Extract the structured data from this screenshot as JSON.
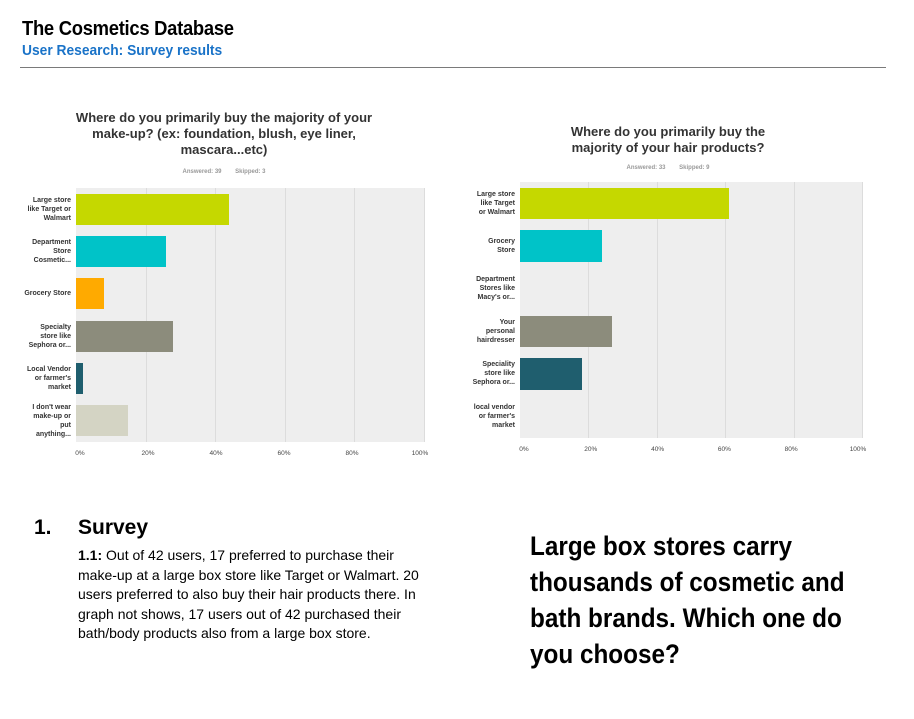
{
  "header": {
    "title": "The Cosmetics Database",
    "subtitle": "User Research: Survey results"
  },
  "chart_data": [
    {
      "type": "bar",
      "orientation": "horizontal",
      "title": "Where do you primarily buy the majority of your make-up? (ex: foundation, blush, eye liner, mascara...etc)",
      "answered": "Answered: 39",
      "skipped": "Skipped: 3",
      "categories": [
        "Large store like Target or Walmart",
        "Department Store Cosmetic...",
        "Grocery Store",
        "Specialty store like Sephora or...",
        "Local Vendor or farmer's market",
        "I don't wear make-up or put anything..."
      ],
      "values": [
        44,
        26,
        8,
        28,
        2,
        15
      ],
      "colors": [
        "#c5d800",
        "#00c3c8",
        "#ffaa00",
        "#8c8c7c",
        "#1f5e6e",
        "#d4d4c4"
      ],
      "x_ticks": [
        "0%",
        "20%",
        "40%",
        "60%",
        "80%",
        "100%"
      ],
      "xlim": [
        0,
        100
      ],
      "grid": true
    },
    {
      "type": "bar",
      "orientation": "horizontal",
      "title": "Where do you primarily buy the majority of your hair products?",
      "answered": "Answered: 33",
      "skipped": "Skipped: 9",
      "categories": [
        "Large store like Target or Walmart",
        "Grocery Store",
        "Department Stores like Macy's or...",
        "Your personal hairdresser",
        "Speciality store like Sephora or...",
        "local vendor or farmer's market"
      ],
      "values": [
        61,
        24,
        0,
        27,
        18,
        0
      ],
      "colors": [
        "#c5d800",
        "#00c3c8",
        "#ffaa00",
        "#8c8c7c",
        "#1f5e6e",
        "#d4d4c4"
      ],
      "x_ticks": [
        "0%",
        "20%",
        "40%",
        "60%",
        "80%",
        "100%"
      ],
      "xlim": [
        0,
        100
      ],
      "grid": true
    }
  ],
  "survey": {
    "number": "1.",
    "heading": "Survey",
    "label": "1.1:",
    "body": " Out of 42 users, 17 preferred to purchase their make-up at a large box store like Target or Walmart. 20 users preferred to also buy their hair products there. In graph not shows, 17 users out of 42 purchased their bath/body products also from a large box store."
  },
  "callout": "Large box stores carry thousands of cosmetic and bath brands. Which one do you choose?"
}
